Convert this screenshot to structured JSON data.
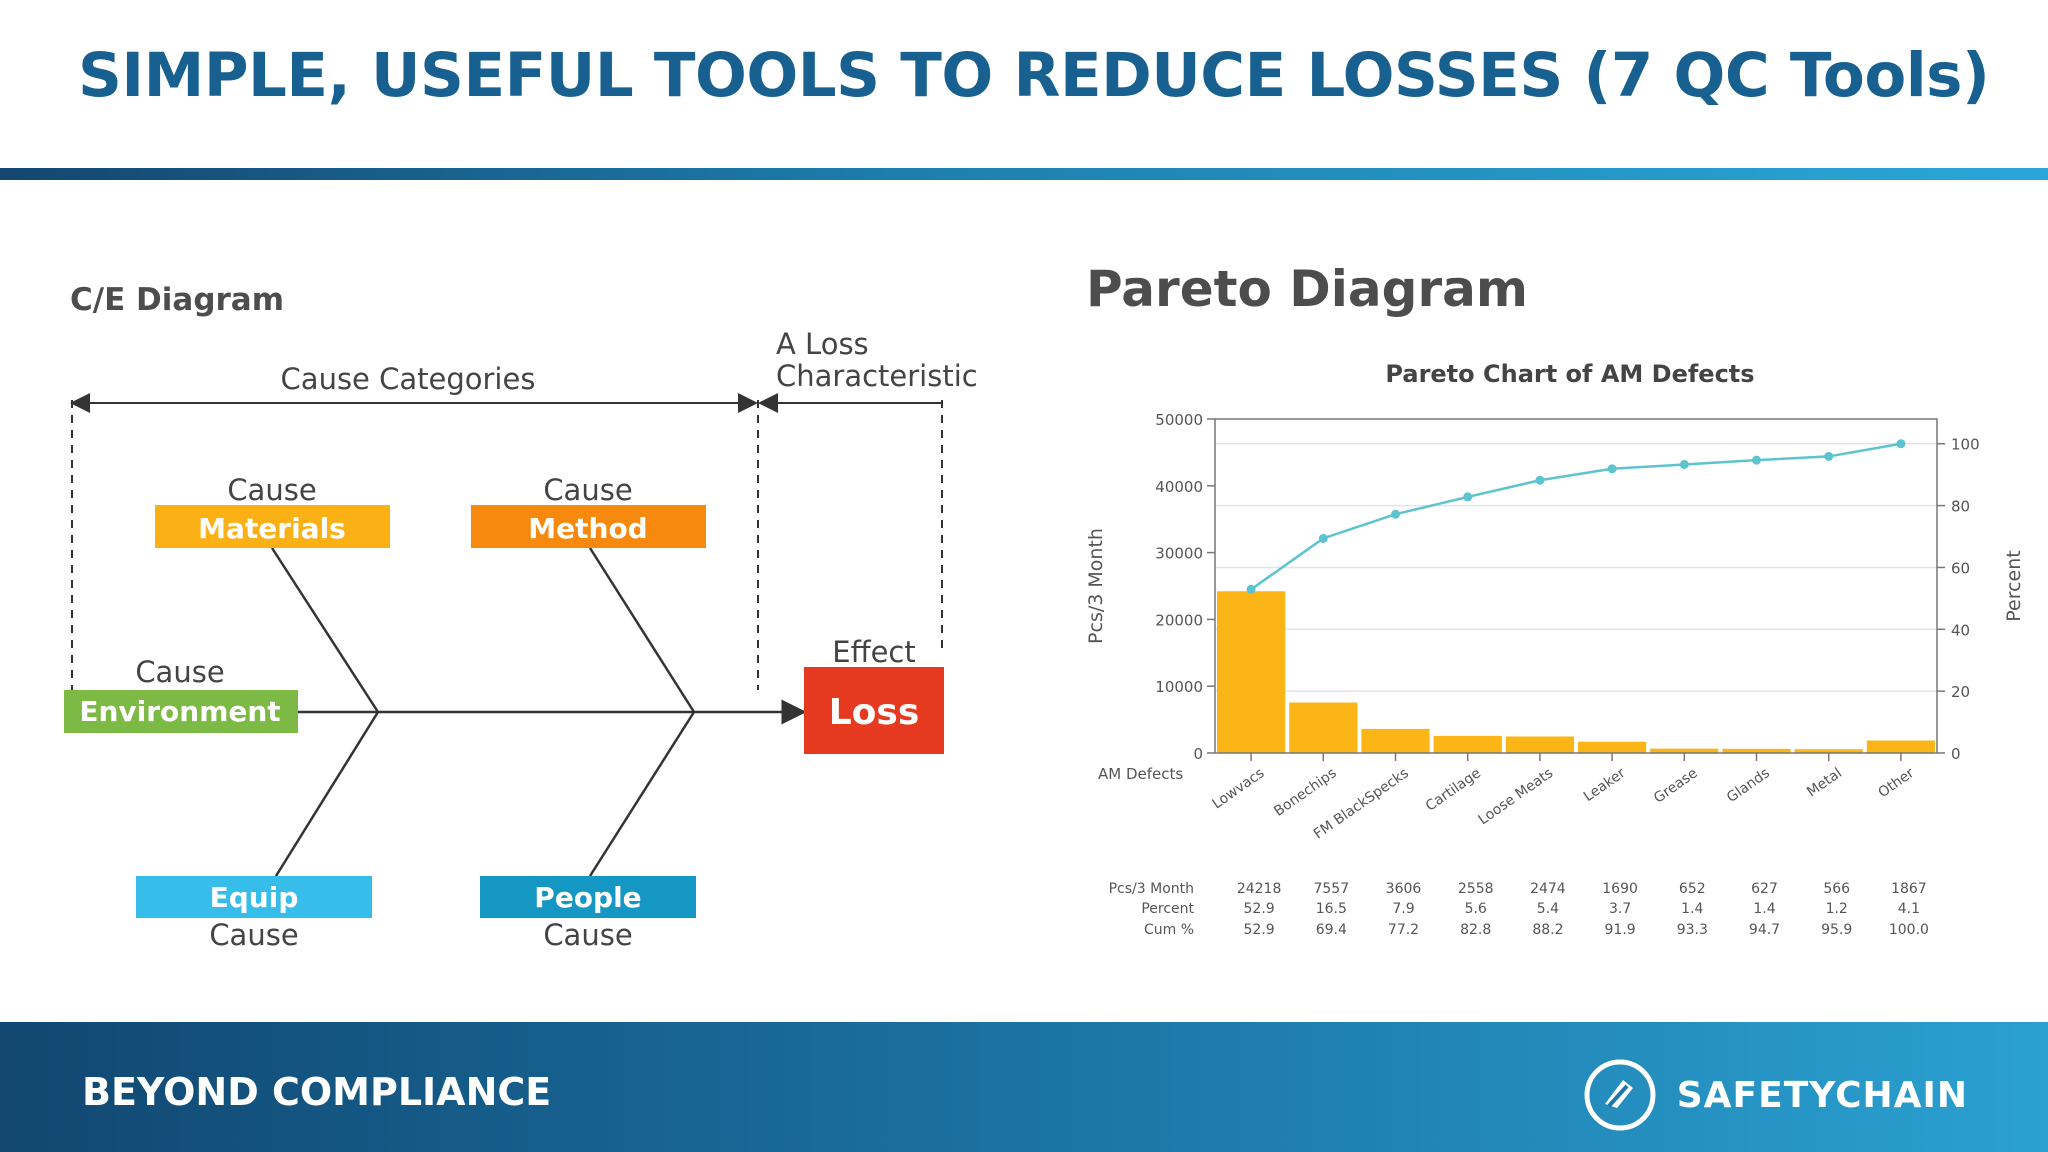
{
  "slide": {
    "title": "SIMPLE, USEFUL TOOLS TO REDUCE LOSSES (7 QC Tools)"
  },
  "ce_diagram": {
    "heading": "C/E Diagram",
    "cause_categories_label": "Cause Categories",
    "loss_characteristic_label_line1": "A Loss",
    "loss_characteristic_label_line2": "Characteristic",
    "effect_label": "Effect",
    "effect_box": "Loss",
    "cause_word": "Cause",
    "causes": {
      "materials": {
        "label": "Materials",
        "color": "#fbb116"
      },
      "method": {
        "label": "Method",
        "color": "#f7890f"
      },
      "environment": {
        "label": "Environment",
        "color": "#7cba45"
      },
      "equip": {
        "label": "Equip",
        "color": "#37bde9"
      },
      "people": {
        "label": "People",
        "color": "#1597c4"
      }
    },
    "effect_color": "#e63a20"
  },
  "pareto": {
    "heading": "Pareto Diagram"
  },
  "chart_data": {
    "type": "bar",
    "title": "Pareto Chart of AM Defects",
    "ylabel": "Pcs/3 Month",
    "y2label": "Percent",
    "category_axis_label": "AM Defects",
    "categories": [
      "Lowvacs",
      "Bonechips",
      "FM BlackSpecks",
      "Cartilage",
      "Loose Meats",
      "Leaker",
      "Grease",
      "Glands",
      "Metal",
      "Other"
    ],
    "ylim": [
      0,
      50000
    ],
    "yticks": [
      "0",
      "10000",
      "20000",
      "30000",
      "40000",
      "50000"
    ],
    "y2lim": [
      0,
      108
    ],
    "y2ticks": [
      "0",
      "20",
      "40",
      "60",
      "80",
      "100"
    ],
    "series": [
      {
        "name": "Pcs/3 Month",
        "type": "bar",
        "values": [
          24218,
          7557,
          3606,
          2558,
          2474,
          1690,
          652,
          627,
          566,
          1867
        ],
        "color": "#fbb516"
      },
      {
        "name": "Cum %",
        "type": "line",
        "axis": "right",
        "values": [
          52.9,
          69.4,
          77.2,
          82.8,
          88.2,
          91.9,
          93.3,
          94.7,
          95.9,
          100.0
        ],
        "color": "#5cc3cf"
      }
    ],
    "table": {
      "row_labels": [
        "Pcs/3 Month",
        "Percent",
        "Cum %"
      ],
      "rows": [
        [
          "24218",
          "7557",
          "3606",
          "2558",
          "2474",
          "1690",
          "652",
          "627",
          "566",
          "1867"
        ],
        [
          "52.9",
          "16.5",
          "7.9",
          "5.6",
          "5.4",
          "3.7",
          "1.4",
          "1.4",
          "1.2",
          "4.1"
        ],
        [
          "52.9",
          "69.4",
          "77.2",
          "82.8",
          "88.2",
          "91.9",
          "93.3",
          "94.7",
          "95.9",
          "100.0"
        ]
      ]
    }
  },
  "footer": {
    "tagline": "BEYOND COMPLIANCE",
    "brand": "SAFETYCHAIN"
  }
}
